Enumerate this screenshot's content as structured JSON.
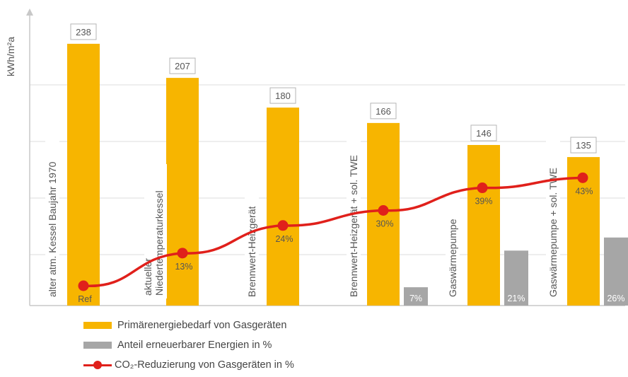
{
  "chart_data": {
    "type": "bar",
    "title": "",
    "ylabel": "kWh/m²a",
    "xlabel": "",
    "ylim": [
      0,
      270
    ],
    "grid": true,
    "categories": [
      "alter atm. Kessel Baujahr 1970",
      "aktueller Niedertemperaturkessel",
      "Brennwert-Heizgerät",
      "Brennwert-Heizgerät + sol. TWE",
      "Gaswärmepumpe",
      "Gaswärmepumpe + sol. TWE"
    ],
    "series": [
      {
        "name": "Primärenergiebedarf von Gasgeräten",
        "type": "bar",
        "color": "#F7B500",
        "values": [
          238,
          207,
          180,
          166,
          146,
          135
        ],
        "labels": [
          "238",
          "207",
          "180",
          "166",
          "146",
          "135"
        ]
      },
      {
        "name": "Anteil erneuerbarer Energien in %",
        "type": "bar",
        "color": "#A6A6A6",
        "values": [
          0,
          0,
          0,
          7,
          21,
          26
        ],
        "labels": [
          "",
          "",
          "",
          "7%",
          "21%",
          "26%"
        ]
      },
      {
        "name": "CO₂-Reduzierung von Gasgeräten in %",
        "type": "line",
        "color": "#E0201B",
        "values": [
          0,
          13,
          24,
          30,
          39,
          43
        ],
        "labels": [
          "Ref",
          "13%",
          "24%",
          "30%",
          "39%",
          "43%"
        ]
      }
    ],
    "legend_position": "bottom-left"
  }
}
